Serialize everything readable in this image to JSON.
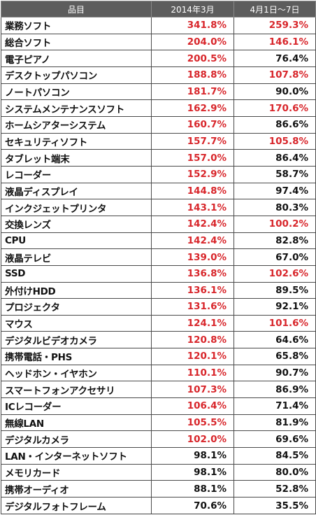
{
  "chart_data": {
    "type": "table",
    "columns": [
      "品目",
      "2014年3月",
      "4月1日〜7日"
    ],
    "threshold": 100,
    "highlight_color": "#d8262b",
    "rows": [
      {
        "item": "業務ソフト",
        "mar_2014": "341.8%",
        "apr_1_7": "259.3%"
      },
      {
        "item": "総合ソフト",
        "mar_2014": "204.0%",
        "apr_1_7": "146.1%"
      },
      {
        "item": "電子ピアノ",
        "mar_2014": "200.5%",
        "apr_1_7": "76.4%"
      },
      {
        "item": "デスクトップパソコン",
        "mar_2014": "188.8%",
        "apr_1_7": "107.8%"
      },
      {
        "item": "ノートパソコン",
        "mar_2014": "181.7%",
        "apr_1_7": "90.0%"
      },
      {
        "item": "システムメンテナンスソフト",
        "mar_2014": "162.9%",
        "apr_1_7": "170.6%"
      },
      {
        "item": "ホームシアターシステム",
        "mar_2014": "160.7%",
        "apr_1_7": "86.6%"
      },
      {
        "item": "セキュリティソフト",
        "mar_2014": "157.7%",
        "apr_1_7": "105.8%"
      },
      {
        "item": "タブレット端末",
        "mar_2014": "157.0%",
        "apr_1_7": "86.4%"
      },
      {
        "item": "レコーダー",
        "mar_2014": "152.9%",
        "apr_1_7": "58.7%"
      },
      {
        "item": "液晶ディスプレイ",
        "mar_2014": "144.8%",
        "apr_1_7": "97.4%"
      },
      {
        "item": "インクジェットプリンタ",
        "mar_2014": "143.1%",
        "apr_1_7": "80.3%"
      },
      {
        "item": "交換レンズ",
        "mar_2014": "142.4%",
        "apr_1_7": "100.2%"
      },
      {
        "item": "CPU",
        "mar_2014": "142.4%",
        "apr_1_7": "82.8%"
      },
      {
        "item": "液晶テレビ",
        "mar_2014": "139.0%",
        "apr_1_7": "67.0%"
      },
      {
        "item": "SSD",
        "mar_2014": "136.8%",
        "apr_1_7": "102.6%"
      },
      {
        "item": "外付けHDD",
        "mar_2014": "136.1%",
        "apr_1_7": "89.5%"
      },
      {
        "item": "プロジェクタ",
        "mar_2014": "131.6%",
        "apr_1_7": "92.1%"
      },
      {
        "item": "マウス",
        "mar_2014": "124.1%",
        "apr_1_7": "101.6%"
      },
      {
        "item": "デジタルビデオカメラ",
        "mar_2014": "120.8%",
        "apr_1_7": "64.6%"
      },
      {
        "item": "携帯電話・PHS",
        "mar_2014": "120.1%",
        "apr_1_7": "65.8%"
      },
      {
        "item": "ヘッドホン・イヤホン",
        "mar_2014": "110.1%",
        "apr_1_7": "90.7%"
      },
      {
        "item": "スマートフォンアクセサリ",
        "mar_2014": "107.3%",
        "apr_1_7": "86.9%"
      },
      {
        "item": "ICレコーダー",
        "mar_2014": "106.4%",
        "apr_1_7": "71.4%"
      },
      {
        "item": "無線LAN",
        "mar_2014": "105.5%",
        "apr_1_7": "81.9%"
      },
      {
        "item": "デジタルカメラ",
        "mar_2014": "102.0%",
        "apr_1_7": "69.6%"
      },
      {
        "item": "LAN・インターネットソフト",
        "mar_2014": "98.1%",
        "apr_1_7": "84.5%"
      },
      {
        "item": "メモリカード",
        "mar_2014": "98.1%",
        "apr_1_7": "80.0%"
      },
      {
        "item": "携帯オーディオ",
        "mar_2014": "88.1%",
        "apr_1_7": "52.8%"
      },
      {
        "item": "デジタルフォトフレーム",
        "mar_2014": "70.6%",
        "apr_1_7": "35.5%"
      }
    ]
  }
}
